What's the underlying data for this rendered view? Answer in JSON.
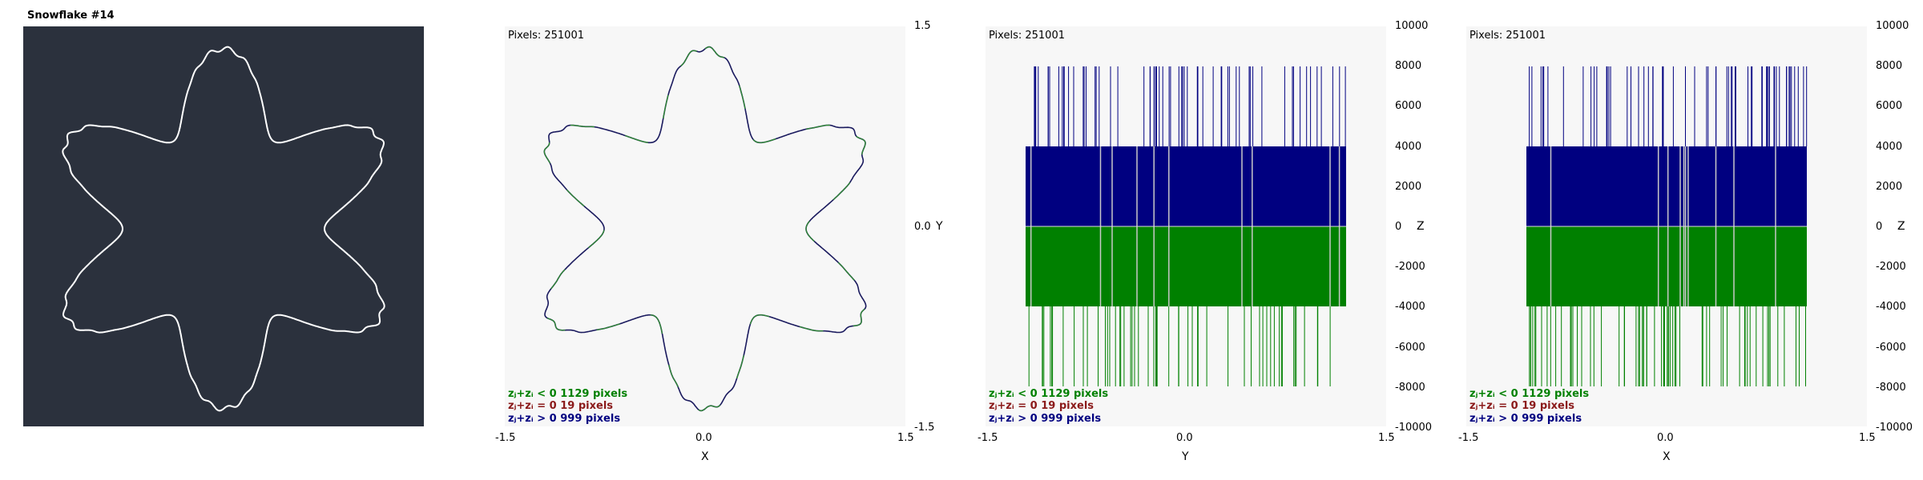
{
  "window": {
    "title": "Snowflake #14"
  },
  "panels": [
    {
      "pixels_label": "Pixels: 251001",
      "xlabel": "X",
      "ylabel": "Y",
      "xticks": [
        "-1.5",
        "0.0",
        "1.5"
      ],
      "yticks": [
        "1.5",
        "0.0",
        "-1.5"
      ]
    },
    {
      "pixels_label": "Pixels: 251001",
      "xlabel": "Y",
      "ylabel": "Z",
      "xticks": [
        "-1.5",
        "0.0",
        "1.5"
      ],
      "yticks": [
        "10000",
        "8000",
        "6000",
        "4000",
        "2000",
        "0",
        "-2000",
        "-4000",
        "-6000",
        "-8000",
        "-10000"
      ]
    },
    {
      "pixels_label": "Pixels: 251001",
      "xlabel": "X",
      "ylabel": "Z",
      "xticks": [
        "-1.5",
        "0.0",
        "1.5"
      ],
      "yticks": [
        "10000",
        "8000",
        "6000",
        "4000",
        "2000",
        "0",
        "-2000",
        "-4000",
        "-6000",
        "-8000",
        "-10000"
      ]
    }
  ],
  "legend": {
    "neg": "zⱼ+zᵢ < 0  1129 pixels",
    "zero": "zⱼ+zᵢ = 0  19 pixels",
    "pos": "zⱼ+zᵢ > 0  999 pixels"
  },
  "colors": {
    "background_dark": "#2b313d",
    "plot_bg": "#f7f7f7",
    "neg": "#008000",
    "zero": "#8b1a1a",
    "pos": "#000080",
    "outline": "#ffffff"
  },
  "chart_data": [
    {
      "type": "line",
      "title": "",
      "description_hint": "snowflake outline (X-Y)",
      "xlim": [
        -1.5,
        1.5
      ],
      "ylim": [
        -1.5,
        1.5
      ]
    },
    {
      "type": "bar",
      "xlabel": "Y",
      "ylabel": "Z",
      "xlim": [
        -1.5,
        1.5
      ],
      "ylim": [
        -10000,
        10000
      ],
      "bands": {
        "pos_top": 4000,
        "neg_bottom": -4000,
        "spike_max": 8000,
        "spike_min": -8000
      },
      "extent": [
        -1.2,
        1.2
      ]
    },
    {
      "type": "bar",
      "xlabel": "X",
      "ylabel": "Z",
      "xlim": [
        -1.5,
        1.5
      ],
      "ylim": [
        -10000,
        10000
      ],
      "bands": {
        "pos_top": 4000,
        "neg_bottom": -4000,
        "spike_max": 8000,
        "spike_min": -8000
      },
      "extent": [
        -1.05,
        1.05
      ]
    }
  ]
}
